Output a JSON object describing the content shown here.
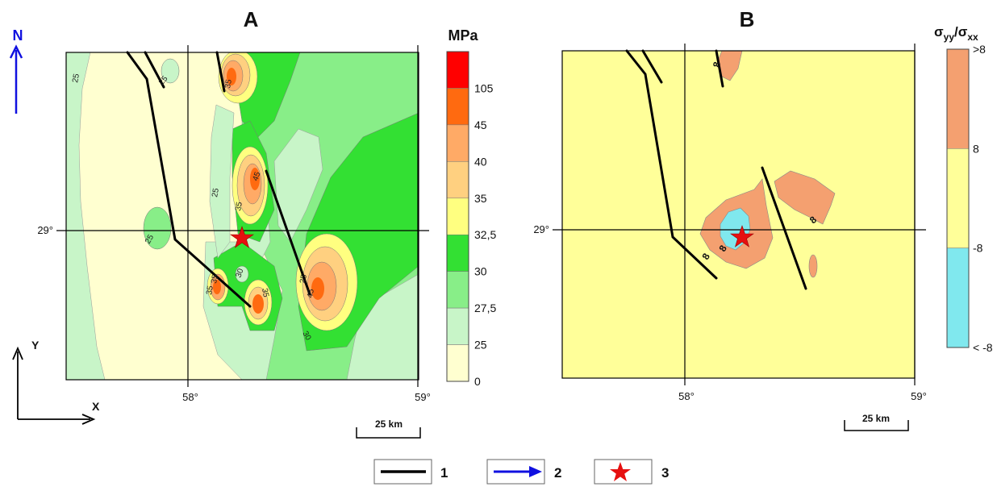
{
  "panel_a": {
    "title": "A",
    "unit": "MPa",
    "lat_label": "29°",
    "lon_labels": [
      "58°",
      "59°"
    ],
    "scale_label": "25 km",
    "contour_labels": [
      "25",
      "25",
      "25",
      "25",
      "35",
      "35",
      "45",
      "35",
      "35",
      "30",
      "35",
      "25",
      "45",
      "30"
    ],
    "colorbar": {
      "ticks": [
        "105",
        "45",
        "40",
        "35",
        "32,5",
        "30",
        "27,5",
        "25",
        "0"
      ],
      "colors": [
        "#ff0000",
        "#ff6a10",
        "#ffaa66",
        "#ffd080",
        "#ffff80",
        "#33e033",
        "#88ee88",
        "#c8f5c8",
        "#ffffd0"
      ]
    }
  },
  "panel_b": {
    "title": "B",
    "unit_main": "σ",
    "unit_sub1": "yy",
    "unit_mid": "/σ",
    "unit_sub2": "xx",
    "lat_label": "29°",
    "lon_labels": [
      "58°",
      "59°"
    ],
    "scale_label": "25 km",
    "contour_labels": [
      "8",
      "8",
      "8",
      "8"
    ],
    "colorbar": {
      "ticks": [
        ">8",
        "8",
        "-8",
        "< -8"
      ],
      "colors": [
        "#f4a070",
        "#ffff99",
        "#80e8ee"
      ]
    }
  },
  "compass": {
    "north": "N",
    "x": "X",
    "y": "Y"
  },
  "legend": {
    "items": [
      {
        "label": "1",
        "symbol": "fault-line"
      },
      {
        "label": "2",
        "symbol": "blue-arrow"
      },
      {
        "label": "3",
        "symbol": "red-star"
      }
    ]
  },
  "colors": {
    "fault": "#000000",
    "arrow": "#1010e0",
    "star": "#e61010"
  }
}
